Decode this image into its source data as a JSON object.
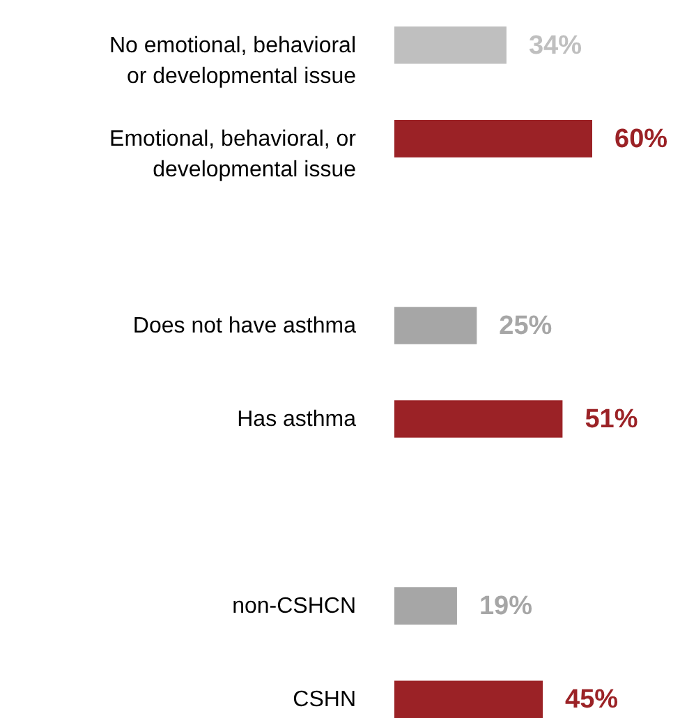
{
  "chart_data": {
    "type": "bar",
    "orientation": "horizontal",
    "categories": [
      "No emotional, behavioral or developmental issue",
      "Emotional, behavioral, or developmental issue",
      null,
      "Does not have asthma",
      "Has asthma",
      null,
      "non-CSHCN",
      "CSHN"
    ],
    "values": [
      34,
      60,
      null,
      25,
      51,
      null,
      19,
      45
    ],
    "value_labels": [
      "34%",
      "60%",
      null,
      "25%",
      "51%",
      null,
      "19%",
      "45%"
    ],
    "colors": [
      "#bfbfbf",
      "#9b2226",
      null,
      "#a6a6a6",
      "#9b2226",
      null,
      "#a6a6a6",
      "#9b2226"
    ],
    "grid": false
  }
}
